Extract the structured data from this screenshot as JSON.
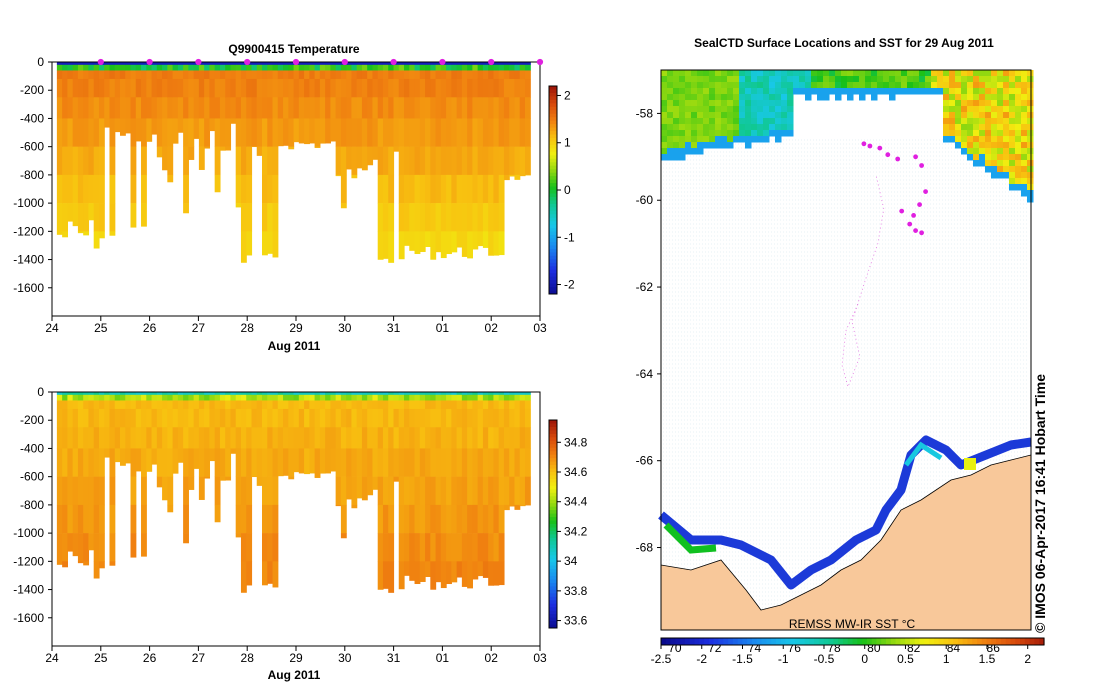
{
  "chart_data": [
    {
      "type": "heatmap",
      "panel": "temperature-section",
      "title": "Q9900415  Temperature",
      "xlabel": "Aug 2011",
      "x_ticks": [
        "24",
        "25",
        "26",
        "27",
        "28",
        "29",
        "30",
        "31",
        "01",
        "02",
        "03"
      ],
      "y_ticks": [
        "0",
        "-200",
        "-400",
        "-600",
        "-800",
        "-1000",
        "-1200",
        "-1400",
        "-1600"
      ],
      "y_tick_values": [
        0,
        -200,
        -400,
        -600,
        -800,
        -1000,
        -1200,
        -1400,
        -1600
      ],
      "ylim": [
        -1800,
        0
      ],
      "colorbar": {
        "range": [
          -2.2,
          2.2
        ],
        "ticks": [
          "2",
          "1",
          "0",
          "-1",
          "-2"
        ],
        "tick_values": [
          2,
          1,
          0,
          -1,
          -2
        ]
      },
      "surface_value": -1.9,
      "deep_value": 1.5,
      "profile_markers": [
        25,
        26,
        27,
        28,
        29,
        30,
        31,
        32,
        33,
        34
      ]
    },
    {
      "type": "heatmap",
      "panel": "salinity-section",
      "title": "",
      "xlabel": "Aug 2011",
      "x_ticks": [
        "24",
        "25",
        "26",
        "27",
        "28",
        "29",
        "30",
        "31",
        "01",
        "02",
        "03"
      ],
      "y_ticks": [
        "0",
        "-200",
        "-400",
        "-600",
        "-800",
        "-1000",
        "-1200",
        "-1400",
        "-1600"
      ],
      "y_tick_values": [
        0,
        -200,
        -400,
        -600,
        -800,
        -1000,
        -1200,
        -1400,
        -1600
      ],
      "ylim": [
        -1800,
        0
      ],
      "colorbar": {
        "range": [
          33.55,
          34.95
        ],
        "ticks": [
          "34.8",
          "34.6",
          "34.4",
          "34.2",
          "34",
          "33.8",
          "33.6"
        ],
        "tick_values": [
          34.8,
          34.6,
          34.4,
          34.2,
          34.0,
          33.8,
          33.6
        ]
      },
      "surface_value": 34.1,
      "deep_value": 34.72
    },
    {
      "type": "heatmap",
      "panel": "surface-locations-map",
      "title": "SealCTD Surface Locations and SST for 29 Aug 2011",
      "lat_ticks": [
        "-58",
        "-60",
        "-62",
        "-64",
        "-66",
        "-68"
      ],
      "lat_values": [
        -58,
        -60,
        -62,
        -64,
        -66,
        -68
      ],
      "lat_range": [
        -57.0,
        -69.9
      ],
      "lon_ticks": [
        "70",
        "72",
        "74",
        "76",
        "78",
        "80",
        "82",
        "84",
        "86"
      ],
      "lon_values": [
        70,
        72,
        74,
        76,
        78,
        80,
        82,
        84,
        86
      ],
      "lon_range": [
        69.3,
        87.9
      ],
      "colorbar": {
        "range": [
          -2.5,
          2.2
        ],
        "ticks": [
          "-2.5",
          "-2",
          "-1.5",
          "-1",
          "-0.5",
          "0",
          "0.5",
          "1",
          "1.5",
          "2"
        ],
        "tick_values": [
          -2.5,
          -2,
          -1.5,
          -1,
          -0.5,
          0,
          0.5,
          1,
          1.5,
          2
        ]
      },
      "colorbar_label": "REMSS MW-IR SST °C",
      "credit": "©  IMOS 06-Apr-2017 16:41 Hobart Time",
      "seal_positions": [
        {
          "lon": 79.5,
          "lat": -58.7
        },
        {
          "lon": 79.8,
          "lat": -58.75
        },
        {
          "lon": 80.3,
          "lat": -58.8
        },
        {
          "lon": 80.7,
          "lat": -58.95
        },
        {
          "lon": 81.2,
          "lat": -59.05
        },
        {
          "lon": 82.1,
          "lat": -59.0
        },
        {
          "lon": 82.4,
          "lat": -59.2
        },
        {
          "lon": 82.6,
          "lat": -59.8
        },
        {
          "lon": 82.3,
          "lat": -60.1
        },
        {
          "lon": 82.0,
          "lat": -60.35
        },
        {
          "lon": 81.8,
          "lat": -60.55
        },
        {
          "lon": 82.1,
          "lat": -60.7
        },
        {
          "lon": 82.4,
          "lat": -60.75
        },
        {
          "lon": 81.4,
          "lat": -60.25
        }
      ]
    }
  ]
}
